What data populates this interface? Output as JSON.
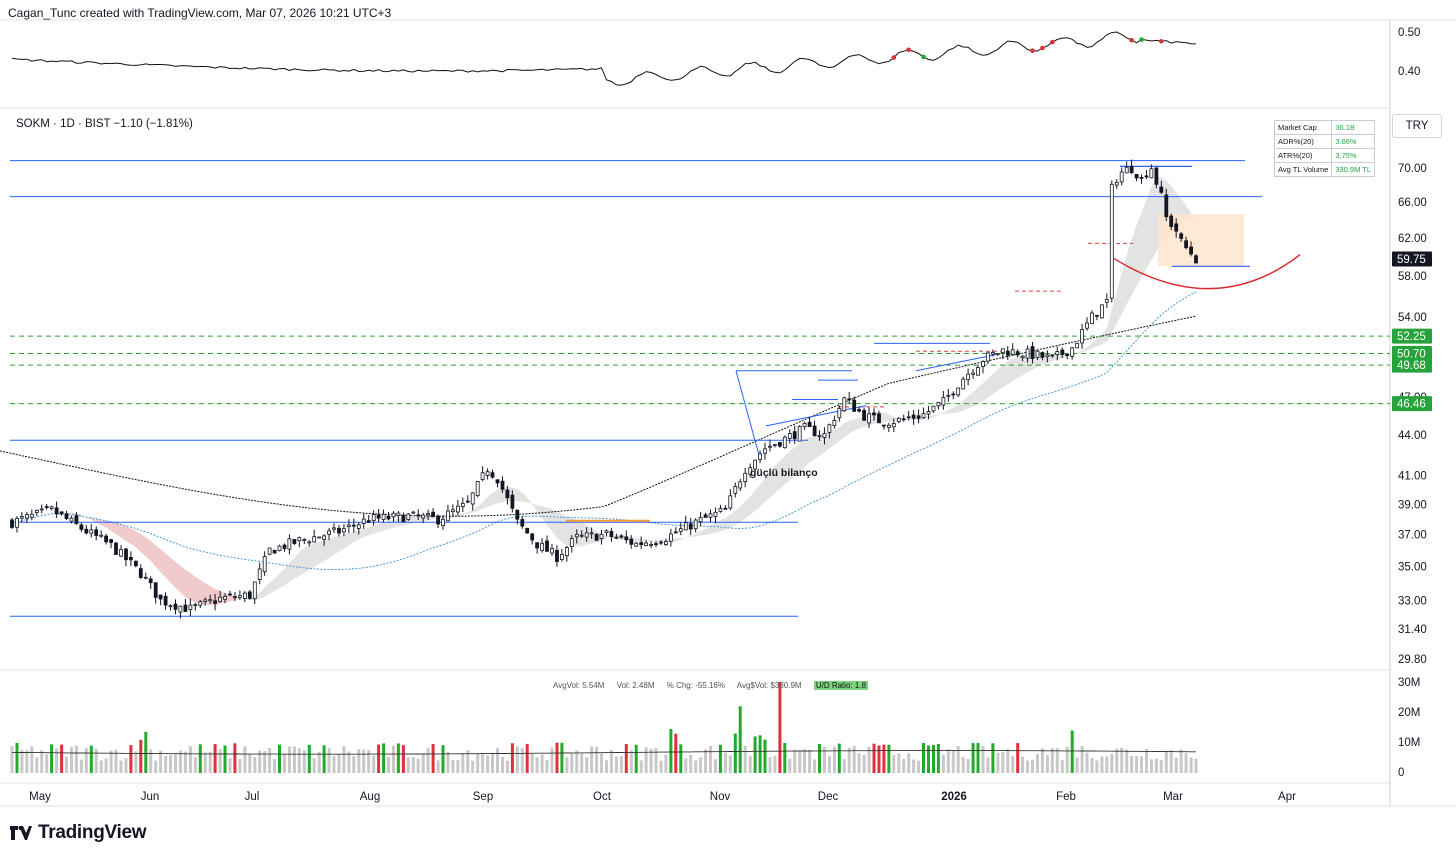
{
  "header": {
    "credit": "Cagan_Tunc created with TradingView.com, Mar 07, 2026 10:21 UTC+3"
  },
  "symbol_line": "SOKM · 1D · BIST  −1.10 (−1.81%)",
  "currency_button": "TRY",
  "brand": "TradingView",
  "stats_table": [
    {
      "label": "Market Cap",
      "value": "36.1B"
    },
    {
      "label": "ADR%(20)",
      "value": "3.66%"
    },
    {
      "label": "ATR%(20)",
      "value": "3.75%"
    },
    {
      "label": "Avg TL Volume",
      "value": "330.9M TL"
    }
  ],
  "volume_info": {
    "avgvol": "AvgVol: 5.54M",
    "vol": "Vol: 2.48M",
    "chg": "% Chg: -55.16%",
    "avgdol": "Avg$Vol: $330.9M",
    "ud": "U/D Ratio: 1.8"
  },
  "colors": {
    "up": "#ffffff",
    "down": "#131722",
    "wick": "#131722",
    "vol_up": "#22ab2b",
    "vol_down": "#e0303c",
    "vol_neutral": "#c8c8c8",
    "hline": "#2962ff",
    "green_dash": "#2ca02c",
    "red_dash": "#e04040",
    "ma_blue": "#4a9ad8",
    "ma_black": "#111111",
    "box": "#fde5cc",
    "arc": "#d9232a",
    "cloud": "#d9d9d9",
    "cloud_red": "#f4c4c4"
  },
  "chart_data": {
    "type": "candlestick",
    "x_axis": {
      "labels": [
        "May",
        "Jun",
        "Jul",
        "Aug",
        "Sep",
        "Oct",
        "Nov",
        "Dec",
        "2026",
        "Feb",
        "Mar",
        "Apr"
      ]
    },
    "price_axis": {
      "scale": "log",
      "ticks": [
        70.0,
        66.0,
        62.0,
        58.0,
        54.0,
        50.0,
        47.0,
        44.0,
        41.0,
        39.0,
        37.0,
        35.0,
        33.0,
        31.4,
        29.8
      ],
      "badges": [
        {
          "label": "59.75",
          "value": 59.75,
          "style": "last"
        },
        {
          "label": "52.25",
          "value": 52.25,
          "style": "green"
        },
        {
          "label": "50.70",
          "value": 50.7,
          "style": "green"
        },
        {
          "label": "49.68",
          "value": 49.68,
          "style": "green"
        },
        {
          "label": "46.46",
          "value": 46.46,
          "style": "green"
        }
      ]
    },
    "indicator_axis": {
      "ticks": [
        "0.50",
        "0.40"
      ]
    },
    "volume_axis": {
      "ticks": [
        "30M",
        "20M",
        "10M",
        "0"
      ]
    },
    "annotation": "güçlü bilanço",
    "horizontal_levels": [
      70.9,
      66.6,
      43.6,
      37.8,
      32.1
    ],
    "last_price": 59.75
  }
}
